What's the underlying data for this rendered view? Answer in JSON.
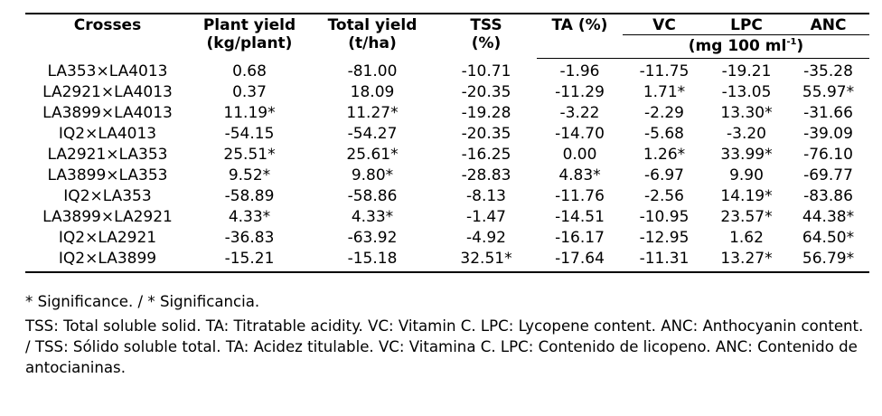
{
  "table": {
    "headers": {
      "crosses": "Crosses",
      "plant_yield": [
        "Plant yield",
        "(kg/plant)"
      ],
      "total_yield": [
        "Total yield",
        "(t/ha)"
      ],
      "tss": [
        "TSS",
        "(%)"
      ],
      "ta": "TA (%)",
      "vc": "VC",
      "lpc": "LPC",
      "anc": "ANC",
      "unit_group": "(mg 100 ml",
      "unit_sup": "-1",
      "unit_close": ")"
    },
    "rows": [
      [
        "LA353×LA4013",
        "0.68",
        "-81.00",
        "-10.71",
        "-1.96",
        "-11.75",
        "-19.21",
        "-35.28"
      ],
      [
        "LA2921×LA4013",
        "0.37",
        "18.09",
        "-20.35",
        "-11.29",
        "1.71*",
        "-13.05",
        "55.97*"
      ],
      [
        "LA3899×LA4013",
        "11.19*",
        "11.27*",
        "-19.28",
        "-3.22",
        "-2.29",
        "13.30*",
        "-31.66"
      ],
      [
        "IQ2×LA4013",
        "-54.15",
        "-54.27",
        "-20.35",
        "-14.70",
        "-5.68",
        "-3.20",
        "-39.09"
      ],
      [
        "LA2921×LA353",
        "25.51*",
        "25.61*",
        "-16.25",
        "0.00",
        "1.26*",
        "33.99*",
        "-76.10"
      ],
      [
        "LA3899×LA353",
        "9.52*",
        "9.80*",
        "-28.83",
        "4.83*",
        "-6.97",
        "9.90",
        "-69.77"
      ],
      [
        "IQ2×LA353",
        "-58.89",
        "-58.86",
        "-8.13",
        "-11.76",
        "-2.56",
        "14.19*",
        "-83.86"
      ],
      [
        "LA3899×LA2921",
        "4.33*",
        "4.33*",
        "-1.47",
        "-14.51",
        "-10.95",
        "23.57*",
        "44.38*"
      ],
      [
        "IQ2×LA2921",
        "-36.83",
        "-63.92",
        "-4.92",
        "-16.17",
        "-12.95",
        "1.62",
        "64.50*"
      ],
      [
        "IQ2×LA3899",
        "-15.21",
        "-15.18",
        "32.51*",
        "-17.64",
        "-11.31",
        "13.27*",
        "56.79*"
      ]
    ]
  },
  "notes": {
    "significance": "* Significance. / * Significancia.",
    "abbreviations": "TSS: Total soluble solid. TA: Titratable acidity. VC: Vitamin C. LPC: Lycopene content. ANC: Anthocyanin content. / TSS: Sólido soluble total. TA: Acidez titulable. VC: Vitamina C. LPC: Contenido de licopeno. ANC: Contenido de antocianinas."
  }
}
